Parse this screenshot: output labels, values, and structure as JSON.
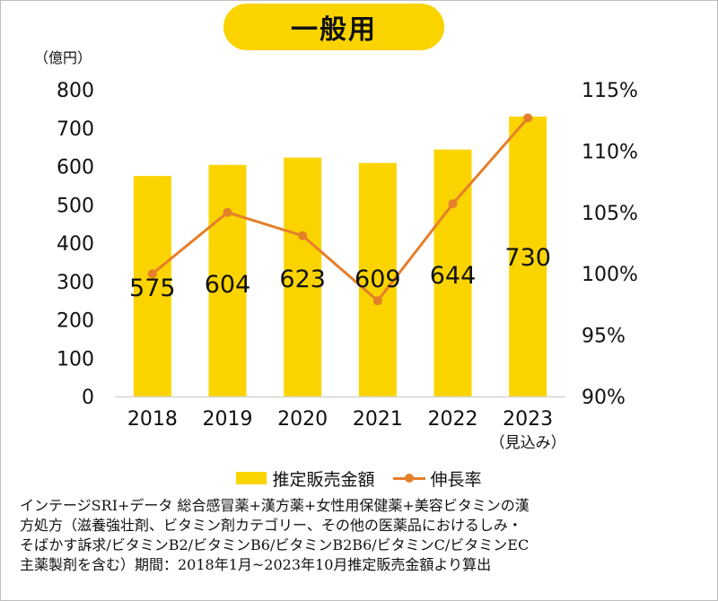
{
  "chart_data": {
    "type": "bar+line",
    "title": "一般用",
    "y_left_unit": "（億円）",
    "y_left_ticks": [
      "800",
      "700",
      "600",
      "500",
      "400",
      "300",
      "200",
      "100",
      "0"
    ],
    "y_left_range": [
      0,
      800
    ],
    "y_right_ticks": [
      "115%",
      "110%",
      "105%",
      "100%",
      "95%",
      "90%"
    ],
    "y_right_range": [
      90,
      115
    ],
    "categories": [
      "2018",
      "2019",
      "2020",
      "2021",
      "2022",
      "2023"
    ],
    "category_sublabels": [
      "",
      "",
      "",
      "",
      "",
      "（見込み）"
    ],
    "series": [
      {
        "name": "推定販売金額",
        "type": "bar",
        "color": "#fbd400",
        "values": [
          575,
          604,
          623,
          609,
          644,
          730
        ],
        "labels": [
          "575",
          "604",
          "623",
          "609",
          "644",
          "730"
        ]
      },
      {
        "name": "伸長率",
        "type": "line",
        "color": "#e57f2a",
        "axis": "right",
        "values": [
          100.0,
          105.0,
          103.1,
          97.8,
          105.7,
          112.7
        ]
      }
    ],
    "grid": false,
    "legend_position": "bottom"
  },
  "legend": {
    "bar_label": "推定販売金額",
    "line_label": "伸長率"
  },
  "note": {
    "line1": "インテージSRI+データ 総合感冒薬+漢方薬+女性用保健薬+美容ビタミンの漢",
    "line2": "方処方（滋養強壮剤、ビタミン剤カテゴリー、その他の医薬品におけるしみ・",
    "line3": "そばかす訴求/ビタミンB2/ビタミンB6/ビタミンB2B6/ビタミンC/ビタミンEC",
    "line4": "主薬製剤を含む）期間：2018年1月~2023年10月推定販売金額より算出"
  }
}
